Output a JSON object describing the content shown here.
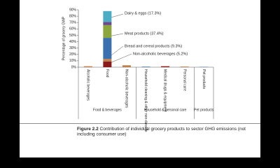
{
  "chart_data": {
    "type": "stacked_bar",
    "y_label": "Percentage of grocery GWP",
    "categories": [
      "Alcoholic beverages",
      "Food",
      "Non-alcoholic beverages",
      "Household cleaning & other non-durable",
      "Medical drugs & equipment",
      "Personal care",
      "Pet products"
    ],
    "groups": [
      {
        "label": "Food & beverages",
        "span": [
          0,
          2
        ]
      },
      {
        "label": "Household & personal care",
        "span": [
          3,
          5
        ]
      },
      {
        "label": "Pet products",
        "span": [
          6,
          6
        ]
      }
    ],
    "series": [
      {
        "color": "#8b1a1a",
        "values": [
          0,
          9,
          0,
          0,
          1.5,
          0,
          0
        ]
      },
      {
        "color": "#c0804a",
        "values": [
          1.5,
          4,
          3,
          0,
          0,
          1,
          0
        ]
      },
      {
        "color": "#3a6fb0",
        "values": [
          0,
          33,
          0,
          0.8,
          0,
          0,
          0.5
        ]
      },
      {
        "color": "#8aa63c",
        "values": [
          0,
          20,
          0,
          0,
          0,
          0,
          0
        ]
      },
      {
        "color": "#6a4a8a",
        "values": [
          0,
          5,
          0,
          0,
          0,
          0,
          0
        ]
      },
      {
        "color": "#4bacc6",
        "values": [
          0,
          17,
          0,
          0,
          0,
          0,
          0
        ]
      }
    ],
    "ylim": [
      0,
      90
    ],
    "yticks": [
      {
        "value": 0,
        "label": "0%"
      },
      {
        "value": 10,
        "label": "10%"
      },
      {
        "value": 20,
        "label": "20%"
      },
      {
        "value": 30,
        "label": "30%"
      },
      {
        "value": 40,
        "label": "40%"
      },
      {
        "value": 50,
        "label": "50%"
      },
      {
        "value": 60,
        "label": "60%"
      },
      {
        "value": 70,
        "label": "70%"
      },
      {
        "value": 80,
        "label": "80%"
      },
      {
        "value": 90,
        "label": "90%"
      }
    ],
    "annotations": [
      "Dairy & eggs (17.3%)",
      "Meat products (37.4%)",
      "Bread and cereal products (9.3%)",
      "Non-alcoholic beverages (5.2%)"
    ],
    "caption": {
      "label": "Figure 2.2",
      "lines": [
        "Contribution of individual grocery products to sector GHG emissions (not",
        "including consumer use)"
      ]
    }
  }
}
